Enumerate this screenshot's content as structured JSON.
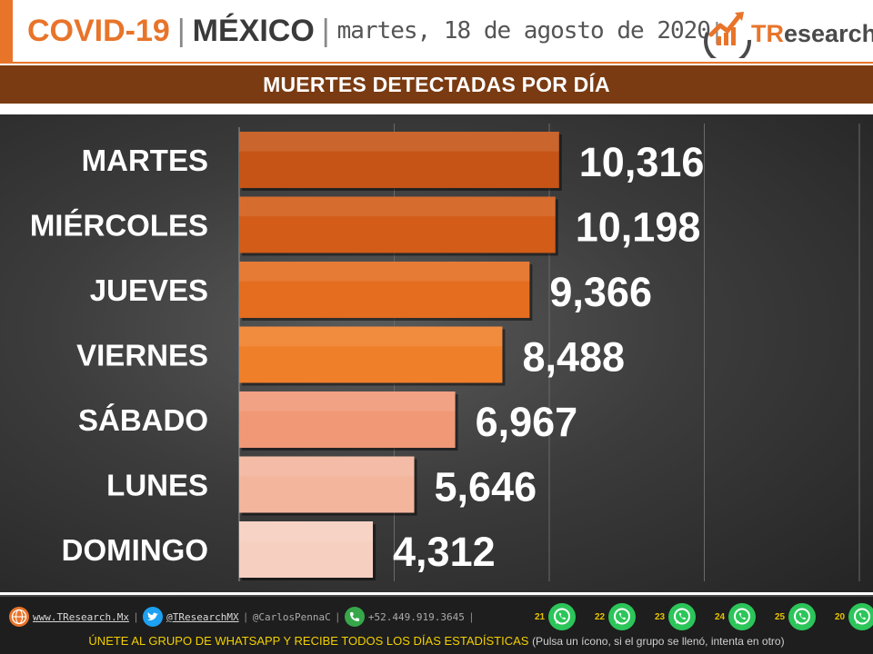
{
  "header": {
    "covid": "COVID-19",
    "sep": "|",
    "country": "MÉXICO",
    "date": "martes, 18 de agosto de 2020",
    "date_sep": "|",
    "logo_tr": "TR",
    "logo_rest": "esearch"
  },
  "band": {
    "title": "MUERTES DETECTADAS POR DÍA"
  },
  "chart_data": {
    "type": "bar",
    "orientation": "horizontal",
    "title": "MUERTES DETECTADAS POR DÍA",
    "categories": [
      "MARTES",
      "MIÉRCOLES",
      "JUEVES",
      "VIERNES",
      "SÁBADO",
      "LUNES",
      "DOMINGO"
    ],
    "values": [
      10316,
      10198,
      9366,
      8488,
      6967,
      5646,
      4312
    ],
    "value_labels": [
      "10,316",
      "10,198",
      "9,366",
      "8,488",
      "6,967",
      "5,646",
      "4,312"
    ],
    "bar_colors": [
      "#c55416",
      "#d35c18",
      "#e46d1f",
      "#f07f2a",
      "#f19877",
      "#f3b59c",
      "#f6cfc0"
    ],
    "xlim": [
      0,
      20000
    ],
    "grid": true,
    "legend": "none"
  },
  "footer": {
    "website": "www.TResearch.Mx",
    "twitter": "@TResearchMX",
    "twitter2": "@CarlosPennaC",
    "phone": "+52.449.919.3645",
    "pipe": "|",
    "whatsapp_groups": [
      "21",
      "22",
      "23",
      "24",
      "25",
      "20"
    ],
    "cta": "ÚNETE AL GRUPO DE WHATSAPP Y RECIBE TODOS LOS DÍAS ESTADÍSTICAS",
    "note": "(Pulsa un ícono, si el grupo se llenó, intenta en otro)",
    "icons": {
      "web": "globe-icon",
      "twitter": "twitter-bird-icon",
      "phone": "phone-icon",
      "wa": "whatsapp-icon"
    },
    "colors": {
      "twitter": "#1da1f2",
      "whatsapp": "#2cc55a",
      "phone": "#37a84a",
      "globe": "#e8742a"
    }
  }
}
